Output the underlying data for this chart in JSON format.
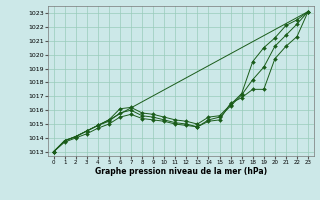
{
  "title": "Graphe pression niveau de la mer (hPa)",
  "bg_color": "#cce8e8",
  "line_color": "#1a5c1a",
  "grid_color": "#99ccbb",
  "xlim": [
    -0.5,
    23.5
  ],
  "ylim": [
    1012.7,
    1023.5
  ],
  "yticks": [
    1013,
    1014,
    1015,
    1016,
    1017,
    1018,
    1019,
    1020,
    1021,
    1022,
    1023
  ],
  "xticks": [
    0,
    1,
    2,
    3,
    4,
    5,
    6,
    7,
    8,
    9,
    10,
    11,
    12,
    13,
    14,
    15,
    16,
    17,
    18,
    19,
    20,
    21,
    22,
    23
  ],
  "series": [
    {
      "x": [
        0,
        1,
        2,
        3,
        4,
        5,
        23
      ],
      "y": [
        1013.0,
        1013.8,
        1014.1,
        1014.5,
        1014.9,
        1015.3,
        1023.1
      ],
      "has_markers": false
    },
    {
      "x": [
        0,
        1,
        2,
        3,
        4,
        5,
        6,
        7,
        8,
        9,
        10,
        11,
        12,
        13,
        14,
        15,
        16,
        17,
        18,
        19,
        20,
        21,
        22,
        23
      ],
      "y": [
        1013.0,
        1013.8,
        1014.1,
        1014.5,
        1014.9,
        1015.3,
        1016.1,
        1016.2,
        1015.8,
        1015.7,
        1015.5,
        1015.3,
        1015.2,
        1015.0,
        1015.5,
        1015.6,
        1016.4,
        1017.2,
        1019.5,
        1020.5,
        1021.2,
        1022.1,
        1022.5,
        1023.1
      ],
      "has_markers": true
    },
    {
      "x": [
        0,
        1,
        2,
        3,
        4,
        5,
        6,
        7,
        8,
        9,
        10,
        11,
        12,
        13,
        14,
        15,
        16,
        17,
        18,
        19,
        20,
        21,
        22,
        23
      ],
      "y": [
        1013.0,
        1013.8,
        1014.1,
        1014.5,
        1014.9,
        1015.2,
        1015.8,
        1016.0,
        1015.6,
        1015.5,
        1015.3,
        1015.1,
        1015.0,
        1014.8,
        1015.3,
        1015.5,
        1016.3,
        1017.1,
        1018.2,
        1019.1,
        1020.6,
        1021.4,
        1022.2,
        1023.1
      ],
      "has_markers": true
    },
    {
      "x": [
        0,
        1,
        2,
        3,
        4,
        5,
        6,
        7,
        8,
        9,
        10,
        11,
        12,
        13,
        14,
        15,
        16,
        17,
        18,
        19,
        20,
        21,
        22,
        23
      ],
      "y": [
        1013.0,
        1013.7,
        1014.0,
        1014.3,
        1014.7,
        1015.0,
        1015.5,
        1015.7,
        1015.4,
        1015.3,
        1015.2,
        1015.0,
        1014.9,
        1014.8,
        1015.2,
        1015.3,
        1016.5,
        1016.9,
        1017.5,
        1017.5,
        1019.7,
        1020.6,
        1021.3,
        1023.1
      ],
      "has_markers": true
    }
  ]
}
